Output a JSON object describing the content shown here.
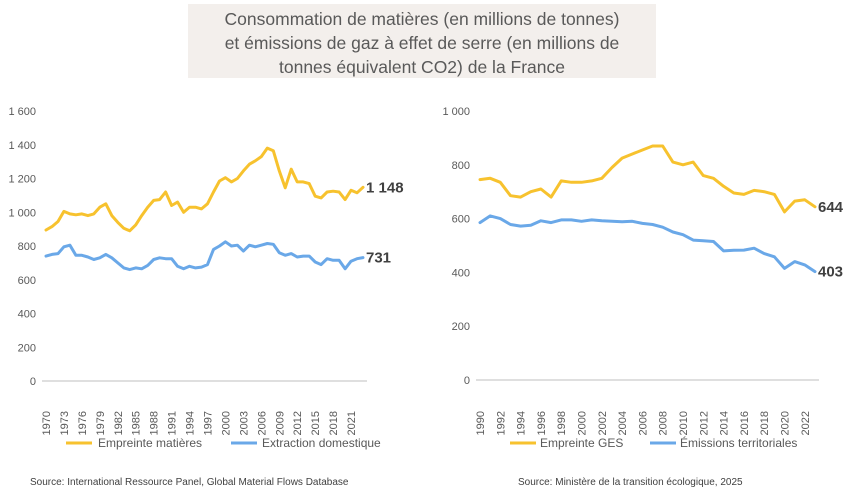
{
  "title": {
    "line1": "Consommation de matières (en millions de tonnes)",
    "line2": "et émissions de gaz à effet de serre (en millions de",
    "line3": "tonnes équivalent CO2) de la France"
  },
  "colors": {
    "yellow": "#F7C22E",
    "blue": "#6AA8E8",
    "axis": "#BFBFBF"
  },
  "sources": {
    "left": "Source: International Ressource Panel, Global Material Flows Database",
    "right": "Source: Ministère de la transition écologique, 2025"
  },
  "chart_data": [
    {
      "type": "line",
      "ylim": [
        0,
        1600
      ],
      "y_ticks": [
        0,
        200,
        400,
        600,
        800,
        1000,
        1200,
        1400,
        1600
      ],
      "y_tick_labels": [
        "0",
        "200",
        "400",
        "600",
        "800",
        "1 000",
        "1 200",
        "1 400",
        "1 600"
      ],
      "x": [
        1970,
        1971,
        1972,
        1973,
        1974,
        1975,
        1976,
        1977,
        1978,
        1979,
        1980,
        1981,
        1982,
        1983,
        1984,
        1985,
        1986,
        1987,
        1988,
        1989,
        1990,
        1991,
        1992,
        1993,
        1994,
        1995,
        1996,
        1997,
        1998,
        1999,
        2000,
        2001,
        2002,
        2003,
        2004,
        2005,
        2006,
        2007,
        2008,
        2009,
        2010,
        2011,
        2012,
        2013,
        2014,
        2015,
        2016,
        2017,
        2018,
        2019,
        2020,
        2021,
        2022,
        2023
      ],
      "x_tick_labels": [
        "1970",
        "1973",
        "1976",
        "1979",
        "1982",
        "1985",
        "1988",
        "1991",
        "1994",
        "1997",
        "2000",
        "2003",
        "2006",
        "2009",
        "2012",
        "2015",
        "2018",
        "2021"
      ],
      "series": [
        {
          "name": "Empreinte matières",
          "color": "#F7C22E",
          "end_label": "1 148",
          "values": [
            895,
            915,
            945,
            1005,
            990,
            985,
            990,
            980,
            990,
            1030,
            1050,
            980,
            940,
            905,
            890,
            925,
            980,
            1030,
            1070,
            1075,
            1120,
            1040,
            1060,
            1000,
            1030,
            1030,
            1020,
            1050,
            1120,
            1185,
            1205,
            1180,
            1200,
            1245,
            1285,
            1305,
            1330,
            1380,
            1365,
            1245,
            1145,
            1255,
            1180,
            1180,
            1170,
            1095,
            1085,
            1120,
            1125,
            1120,
            1075,
            1130,
            1115,
            1148
          ]
        },
        {
          "name": "Extraction domestique",
          "color": "#6AA8E8",
          "end_label": "731",
          "values": [
            740,
            750,
            755,
            795,
            805,
            745,
            745,
            735,
            720,
            730,
            750,
            730,
            700,
            670,
            660,
            670,
            665,
            685,
            720,
            730,
            725,
            725,
            680,
            665,
            680,
            670,
            675,
            690,
            780,
            800,
            825,
            800,
            805,
            770,
            805,
            795,
            805,
            815,
            810,
            760,
            745,
            755,
            735,
            740,
            740,
            705,
            690,
            725,
            715,
            715,
            665,
            710,
            725,
            731
          ]
        }
      ]
    },
    {
      "type": "line",
      "ylim": [
        0,
        1000
      ],
      "y_ticks": [
        0,
        200,
        400,
        600,
        800,
        1000
      ],
      "y_tick_labels": [
        "0",
        "200",
        "400",
        "600",
        "800",
        "1 000"
      ],
      "x": [
        1990,
        1991,
        1992,
        1993,
        1994,
        1995,
        1996,
        1997,
        1998,
        1999,
        2000,
        2001,
        2002,
        2003,
        2004,
        2005,
        2006,
        2007,
        2008,
        2009,
        2010,
        2011,
        2012,
        2013,
        2014,
        2015,
        2016,
        2017,
        2018,
        2019,
        2020,
        2021,
        2022,
        2023
      ],
      "x_tick_labels": [
        "1990",
        "1992",
        "1994",
        "1996",
        "1998",
        "2000",
        "2002",
        "2004",
        "2006",
        "2008",
        "2010",
        "2012",
        "2014",
        "2016",
        "2018",
        "2020",
        "2022"
      ],
      "series": [
        {
          "name": "Empreinte GES",
          "color": "#F7C22E",
          "end_label": "644",
          "values": [
            745,
            750,
            735,
            685,
            680,
            700,
            710,
            680,
            740,
            735,
            735,
            740,
            750,
            790,
            825,
            840,
            855,
            870,
            870,
            810,
            800,
            810,
            760,
            750,
            720,
            695,
            690,
            705,
            700,
            690,
            625,
            665,
            670,
            644
          ]
        },
        {
          "name": "Émissions territoriales",
          "color": "#6AA8E8",
          "end_label": "403",
          "values": [
            585,
            610,
            600,
            578,
            572,
            575,
            592,
            585,
            595,
            595,
            590,
            595,
            592,
            590,
            588,
            590,
            582,
            578,
            568,
            550,
            540,
            520,
            518,
            515,
            480,
            482,
            483,
            490,
            470,
            458,
            415,
            440,
            428,
            403
          ]
        }
      ]
    }
  ]
}
